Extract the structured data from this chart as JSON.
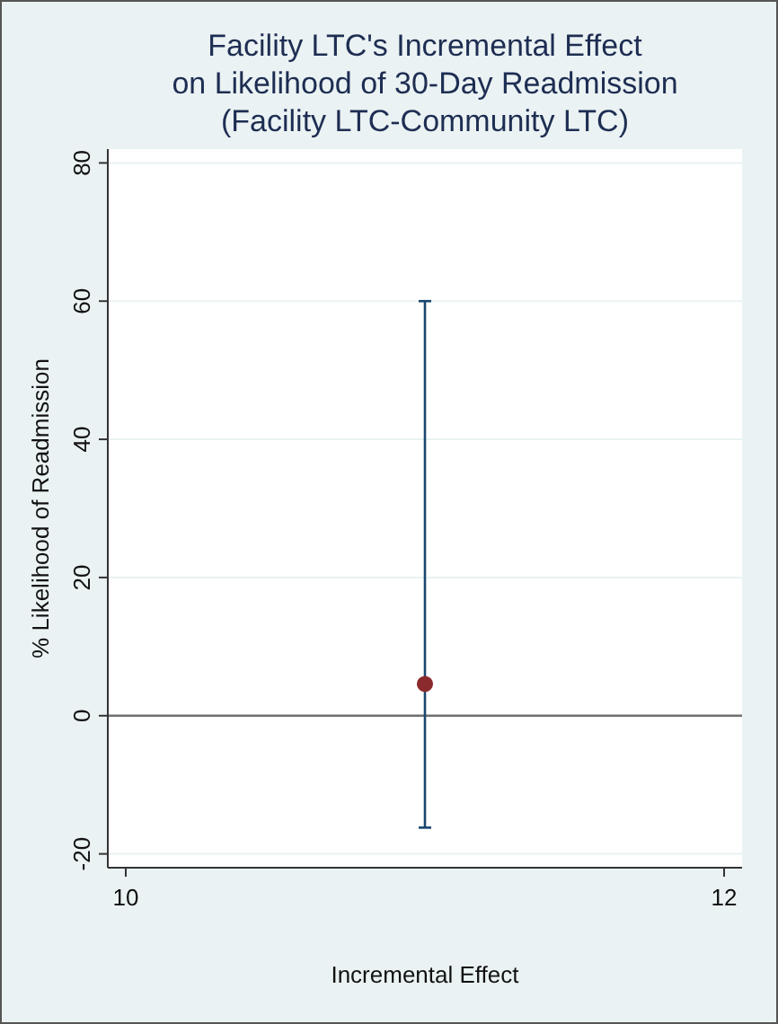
{
  "chart_data": {
    "type": "scatter",
    "title": "Facility LTC's Incremental Effect\non Likelihood of 30-Day Readmission\n(Facility LTC-Community LTC)",
    "xlabel": "Incremental Effect",
    "ylabel": "% Likelihood of Readmission",
    "x": [
      11
    ],
    "series": [
      {
        "color": "#8b2a2e",
        "values": [
          4.6
        ],
        "errors": [
          [
            -16.2,
            60
          ]
        ]
      }
    ],
    "xlim": [
      9.94,
      12.06
    ],
    "xticks": [
      10,
      12
    ],
    "ylim": [
      -22,
      82
    ],
    "yticks": [
      -20,
      0,
      20,
      40,
      60,
      80
    ],
    "ref_lines": [
      {
        "axis": "y",
        "value": 0,
        "color": "#707070"
      }
    ],
    "grid": "y",
    "marker": "circle"
  }
}
